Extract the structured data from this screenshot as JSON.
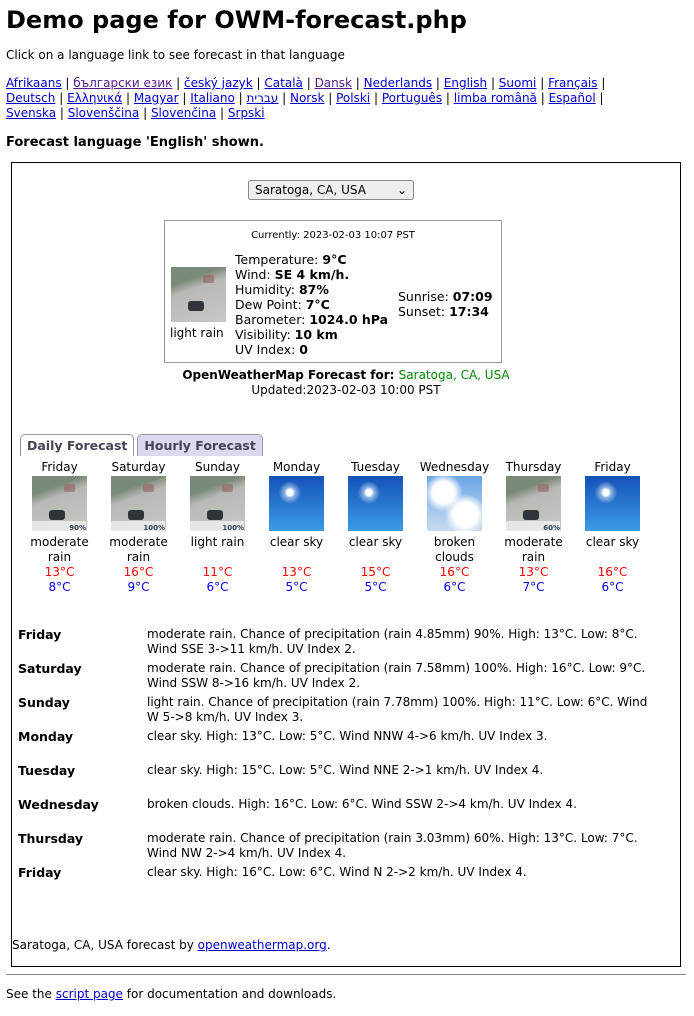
{
  "title": "Demo page for OWM-forecast.php",
  "intro": "Click on a language link to see forecast in that language",
  "languages": [
    {
      "label": "Afrikaans",
      "visited": false
    },
    {
      "label": "български език",
      "visited": true
    },
    {
      "label": "český jazyk",
      "visited": false
    },
    {
      "label": "Català",
      "visited": false
    },
    {
      "label": "Dansk",
      "visited": true
    },
    {
      "label": "Nederlands",
      "visited": false
    },
    {
      "label": "English",
      "visited": false
    },
    {
      "label": "Suomi",
      "visited": false
    },
    {
      "label": "Français",
      "visited": false
    },
    {
      "label": "Deutsch",
      "visited": false
    },
    {
      "label": "Ελληνικά",
      "visited": false
    },
    {
      "label": "Magyar",
      "visited": false
    },
    {
      "label": "Italiano",
      "visited": false
    },
    {
      "label": "עברית",
      "visited": false
    },
    {
      "label": "Norsk",
      "visited": false
    },
    {
      "label": "Polski",
      "visited": false
    },
    {
      "label": "Português",
      "visited": false
    },
    {
      "label": "limba română",
      "visited": false
    },
    {
      "label": "Español",
      "visited": false
    },
    {
      "label": "Svenska",
      "visited": false
    },
    {
      "label": "Slovenščina",
      "visited": false
    },
    {
      "label": "Slovenčina",
      "visited": false
    },
    {
      "label": "Srpski",
      "visited": false
    }
  ],
  "shown": "Forecast language 'English' shown.",
  "location_select": "Saratoga, CA, USA",
  "current": {
    "timestamp": "Currently: 2023-02-03 10:07 PST",
    "condition": "light rain",
    "icon": "rain-image",
    "values": [
      {
        "label": "Temperature: ",
        "value": "9°C"
      },
      {
        "label": "Wind: ",
        "value": "SE 4 km/h."
      },
      {
        "label": "Humidity: ",
        "value": "87%"
      },
      {
        "label": "Dew Point: ",
        "value": "7°C"
      },
      {
        "label": "Barometer: ",
        "value": "1024.0 hPa"
      },
      {
        "label": "Visibility: ",
        "value": "10 km"
      },
      {
        "label": "UV Index: ",
        "value": "0"
      }
    ],
    "sunrise_label": "Sunrise: ",
    "sunrise": "07:09",
    "sunset_label": "Sunset: ",
    "sunset": "17:34"
  },
  "forecast_for_label": "OpenWeatherMap Forecast for: ",
  "forecast_for": "Saratoga, CA, USA",
  "updated": "Updated:2023-02-03 10:00 PST",
  "tabs": [
    {
      "label": "Daily Forecast",
      "active": true
    },
    {
      "label": "Hourly Forecast",
      "active": false
    }
  ],
  "days": [
    {
      "day": "Friday",
      "icon": "rain",
      "pct": "90%",
      "cond": "moderate rain",
      "hi": "13°C",
      "lo": "8°C"
    },
    {
      "day": "Saturday",
      "icon": "rain",
      "pct": "100%",
      "cond": "moderate rain",
      "hi": "16°C",
      "lo": "9°C"
    },
    {
      "day": "Sunday",
      "icon": "rain",
      "pct": "100%",
      "cond": "light rain",
      "hi": "11°C",
      "lo": "6°C"
    },
    {
      "day": "Monday",
      "icon": "sun",
      "pct": "",
      "cond": "clear sky",
      "hi": "13°C",
      "lo": "5°C"
    },
    {
      "day": "Tuesday",
      "icon": "sun",
      "pct": "",
      "cond": "clear sky",
      "hi": "15°C",
      "lo": "5°C"
    },
    {
      "day": "Wednesday",
      "icon": "cloud",
      "pct": "",
      "cond": "broken clouds",
      "hi": "16°C",
      "lo": "6°C"
    },
    {
      "day": "Thursday",
      "icon": "rain",
      "pct": "60%",
      "cond": "moderate rain",
      "hi": "13°C",
      "lo": "7°C"
    },
    {
      "day": "Friday",
      "icon": "sun",
      "pct": "",
      "cond": "clear sky",
      "hi": "16°C",
      "lo": "6°C"
    }
  ],
  "details": [
    {
      "day": "Friday",
      "text": "moderate rain. Chance of precipitation (rain 4.85mm) 90%. High: 13°C. Low: 8°C. Wind SSE 3->11 km/h. UV Index 2."
    },
    {
      "day": "Saturday",
      "text": "moderate rain. Chance of precipitation (rain 7.58mm) 100%. High: 16°C. Low: 9°C. Wind SSW 8->16 km/h. UV Index 2."
    },
    {
      "day": "Sunday",
      "text": "light rain. Chance of precipitation (rain 7.78mm) 100%. High: 11°C. Low: 6°C. Wind W 5->8 km/h. UV Index 3."
    },
    {
      "day": "Monday",
      "text": "clear sky. High: 13°C. Low: 5°C. Wind NNW 4->6 km/h. UV Index 3."
    },
    {
      "day": "Tuesday",
      "text": "clear sky. High: 15°C. Low: 5°C. Wind NNE 2->1 km/h. UV Index 4."
    },
    {
      "day": "Wednesday",
      "text": "broken clouds. High: 16°C. Low: 6°C. Wind SSW 2->4 km/h. UV Index 4."
    },
    {
      "day": "Thursday",
      "text": "moderate rain. Chance of precipitation (rain 3.03mm) 60%. High: 13°C. Low: 7°C. Wind NW 2->4 km/h. UV Index 4."
    },
    {
      "day": "Friday",
      "text": "clear sky. High: 16°C. Low: 6°C. Wind N 2->2 km/h. UV Index 4."
    }
  ],
  "credit_prefix": "Saratoga, CA, USA forecast by ",
  "credit_link": "openweathermap.org",
  "credit_suffix": ".",
  "footer_prefix": "See the ",
  "footer_link": "script page",
  "footer_suffix": " for documentation and downloads."
}
